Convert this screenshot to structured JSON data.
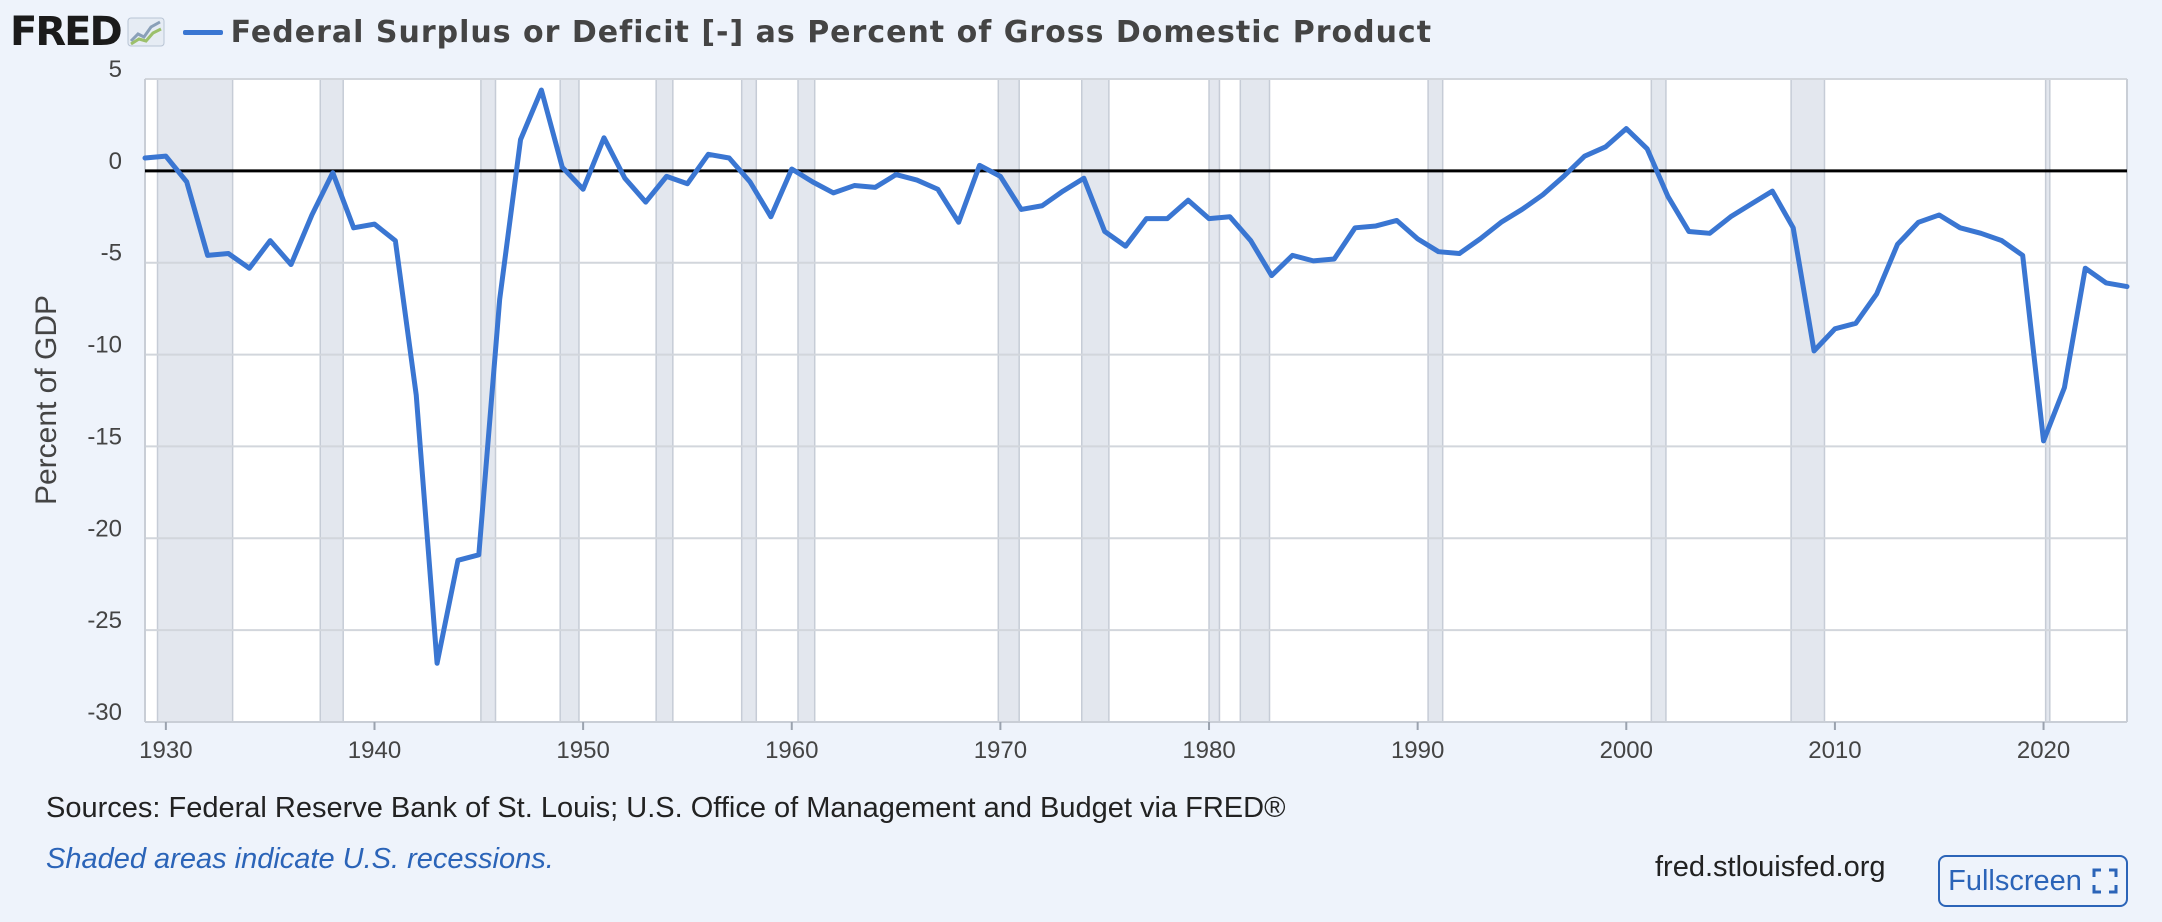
{
  "header": {
    "logo_text": "FRED",
    "title": "Federal Surplus or Deficit [-] as Percent of Gross Domestic Product",
    "series_color": "#3a76d2"
  },
  "footer": {
    "sources": "Sources: Federal Reserve Bank of St. Louis; U.S. Office of Management and Budget via FRED®",
    "recession_note": "Shaded areas indicate U.S. recessions.",
    "site": "fred.stlouisfed.org",
    "fullscreen_label": "Fullscreen",
    "fullscreen_icon": "fullscreen-icon"
  },
  "chart_data": {
    "type": "line",
    "title": "Federal Surplus or Deficit [-] as Percent of Gross Domestic Product",
    "xlabel": "",
    "ylabel": "Percent of GDP",
    "xlim": [
      1929,
      2024
    ],
    "ylim": [
      -30,
      5
    ],
    "yticks": [
      5,
      0,
      -5,
      -10,
      -15,
      -20,
      -25,
      -30
    ],
    "xticks": [
      1930,
      1940,
      1950,
      1960,
      1970,
      1980,
      1990,
      2000,
      2010,
      2020
    ],
    "grid": true,
    "zero_line": true,
    "series_color": "#3a76d2",
    "recession_color": "#e3e7ee",
    "recessions": [
      [
        1929.6,
        1933.2
      ],
      [
        1937.4,
        1938.5
      ],
      [
        1945.1,
        1945.8
      ],
      [
        1948.9,
        1949.8
      ],
      [
        1953.5,
        1954.3
      ],
      [
        1957.6,
        1958.3
      ],
      [
        1960.3,
        1961.1
      ],
      [
        1969.9,
        1970.9
      ],
      [
        1973.9,
        1975.2
      ],
      [
        1980.0,
        1980.5
      ],
      [
        1981.5,
        1982.9
      ],
      [
        1990.5,
        1991.2
      ],
      [
        2001.2,
        2001.9
      ],
      [
        2007.9,
        2009.5
      ],
      [
        2020.1,
        2020.3
      ]
    ],
    "series": [
      {
        "name": "Federal Surplus or Deficit [-] as Percent of Gross Domestic Product",
        "x": [
          1929,
          1930,
          1931,
          1932,
          1933,
          1934,
          1935,
          1936,
          1937,
          1938,
          1939,
          1940,
          1941,
          1942,
          1943,
          1944,
          1945,
          1946,
          1947,
          1948,
          1949,
          1950,
          1951,
          1952,
          1953,
          1954,
          1955,
          1956,
          1957,
          1958,
          1959,
          1960,
          1961,
          1962,
          1963,
          1964,
          1965,
          1966,
          1967,
          1968,
          1969,
          1970,
          1971,
          1972,
          1973,
          1974,
          1975,
          1976,
          1977,
          1978,
          1979,
          1980,
          1981,
          1982,
          1983,
          1984,
          1985,
          1986,
          1987,
          1988,
          1989,
          1990,
          1991,
          1992,
          1993,
          1994,
          1995,
          1996,
          1997,
          1998,
          1999,
          2000,
          2001,
          2002,
          2003,
          2004,
          2005,
          2006,
          2007,
          2008,
          2009,
          2010,
          2011,
          2012,
          2013,
          2014,
          2015,
          2016,
          2017,
          2018,
          2019,
          2020,
          2021,
          2022,
          2023,
          2024
        ],
        "y": [
          0.7,
          0.8,
          -0.6,
          -4.6,
          -4.5,
          -5.3,
          -3.8,
          -5.1,
          -2.4,
          -0.1,
          -3.1,
          -2.9,
          -3.8,
          -12.2,
          -26.8,
          -21.2,
          -20.9,
          -7.0,
          1.7,
          4.4,
          0.2,
          -1.0,
          1.8,
          -0.4,
          -1.7,
          -0.3,
          -0.7,
          0.9,
          0.7,
          -0.6,
          -2.5,
          0.1,
          -0.6,
          -1.2,
          -0.8,
          -0.9,
          -0.2,
          -0.5,
          -1.0,
          -2.8,
          0.3,
          -0.3,
          -2.1,
          -1.9,
          -1.1,
          -0.4,
          -3.3,
          -4.1,
          -2.6,
          -2.6,
          -1.6,
          -2.6,
          -2.5,
          -3.8,
          -5.7,
          -4.6,
          -4.9,
          -4.8,
          -3.1,
          -3.0,
          -2.7,
          -3.7,
          -4.4,
          -4.5,
          -3.7,
          -2.8,
          -2.1,
          -1.3,
          -0.3,
          0.8,
          1.3,
          2.3,
          1.2,
          -1.4,
          -3.3,
          -3.4,
          -2.5,
          -1.8,
          -1.1,
          -3.1,
          -9.8,
          -8.6,
          -8.3,
          -6.7,
          -4.0,
          -2.8,
          -2.4,
          -3.1,
          -3.4,
          -3.8,
          -4.6,
          -14.7,
          -11.8,
          -5.3,
          -6.1,
          -6.3
        ]
      }
    ]
  }
}
